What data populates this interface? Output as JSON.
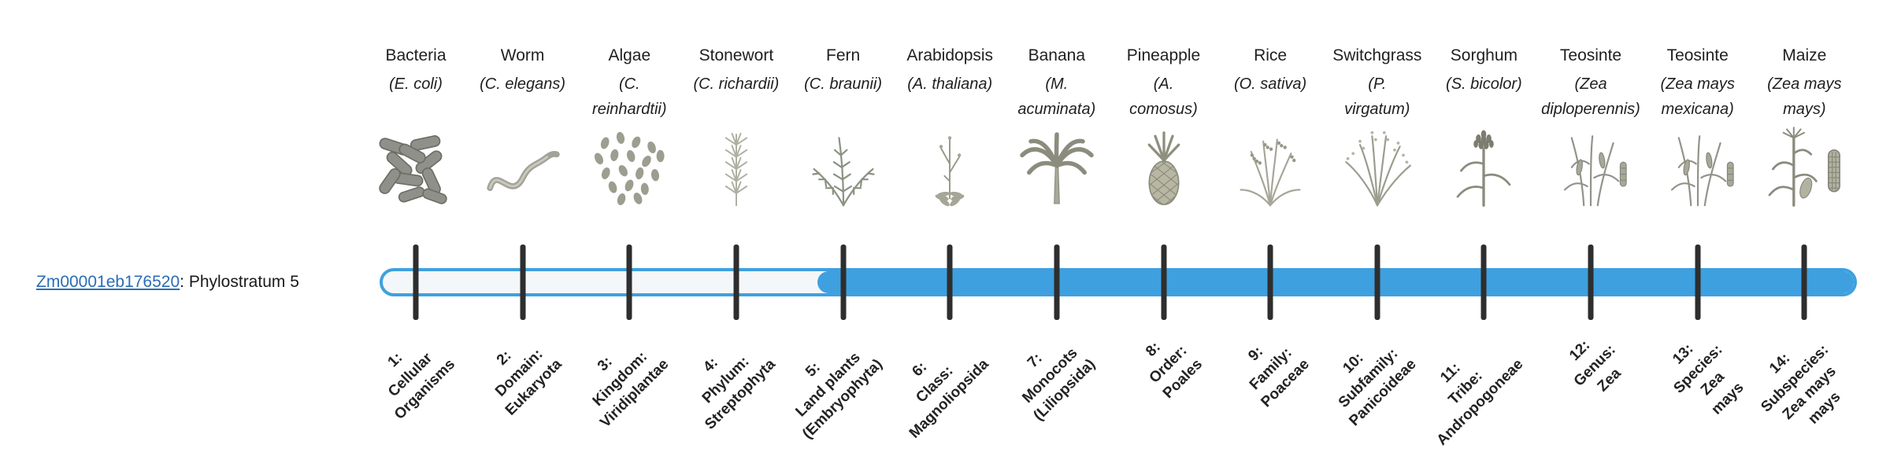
{
  "figure": {
    "background": "#ffffff"
  },
  "gene": {
    "id": "Zm00001eb176520",
    "suffix": ": Phylostratum 5",
    "phylostratum": 5
  },
  "track": {
    "accent_color": "#3fa0df",
    "unfilled_color": "#f4f7f9",
    "tick_color": "#2e2e2e",
    "filled_from_stratum": 5,
    "filled_to_stratum": 14
  },
  "species": [
    {
      "common": "Bacteria",
      "sci": "(E. coli)",
      "icon": "bacteria"
    },
    {
      "common": "Worm",
      "sci": "(C. elegans)",
      "icon": "worm"
    },
    {
      "common": "Algae",
      "sci": "(C.\nreinhardtii)",
      "icon": "algae"
    },
    {
      "common": "Stonewort",
      "sci": "(C. richardii)",
      "icon": "stonewort"
    },
    {
      "common": "Fern",
      "sci": "(C. braunii)",
      "icon": "fern"
    },
    {
      "common": "Arabidopsis",
      "sci": "(A. thaliana)",
      "icon": "arabidopsis"
    },
    {
      "common": "Banana",
      "sci": "(M.\nacuminata)",
      "icon": "banana"
    },
    {
      "common": "Pineapple",
      "sci": "(A.\ncomosus)",
      "icon": "pineapple"
    },
    {
      "common": "Rice",
      "sci": "(O. sativa)",
      "icon": "rice"
    },
    {
      "common": "Switchgrass",
      "sci": "(P.\nvirgatum)",
      "icon": "switchgrass"
    },
    {
      "common": "Sorghum",
      "sci": "(S. bicolor)",
      "icon": "sorghum"
    },
    {
      "common": "Teosinte",
      "sci": "(Zea\ndiploperennis)",
      "icon": "teosinte"
    },
    {
      "common": "Teosinte",
      "sci": "(Zea mays\nmexicana)",
      "icon": "teosinte"
    },
    {
      "common": "Maize",
      "sci": "(Zea mays\nmays)",
      "icon": "maize"
    }
  ],
  "strata": [
    {
      "lines": [
        "1:",
        "Cellular",
        "Organisms"
      ]
    },
    {
      "lines": [
        "2:",
        "Domain:",
        "Eukaryota"
      ]
    },
    {
      "lines": [
        "3:",
        "Kingdom:",
        "Viridiplantae"
      ]
    },
    {
      "lines": [
        "4:",
        "Phylum:",
        "Streptophyta"
      ]
    },
    {
      "lines": [
        "5:",
        "Land plants",
        "(Embryophyta)"
      ]
    },
    {
      "lines": [
        "6:",
        "Class:",
        "Magnoliopsida"
      ]
    },
    {
      "lines": [
        "7:",
        "Monocots",
        "(Liliopsida)"
      ]
    },
    {
      "lines": [
        "8:",
        "Order:",
        "Poales"
      ]
    },
    {
      "lines": [
        "9:",
        "Family:",
        "Poaceae"
      ]
    },
    {
      "lines": [
        "10:",
        "Subfamily:",
        "Panicoideae"
      ]
    },
    {
      "lines": [
        "11:",
        "Tribe:",
        "Andropogoneae"
      ]
    },
    {
      "lines": [
        "12:",
        "Genus:",
        "Zea"
      ]
    },
    {
      "lines": [
        "13:",
        "Species:",
        "Zea",
        "mays"
      ]
    },
    {
      "lines": [
        "14:",
        "Subspecies:",
        "Zea mays",
        "mays"
      ]
    }
  ]
}
